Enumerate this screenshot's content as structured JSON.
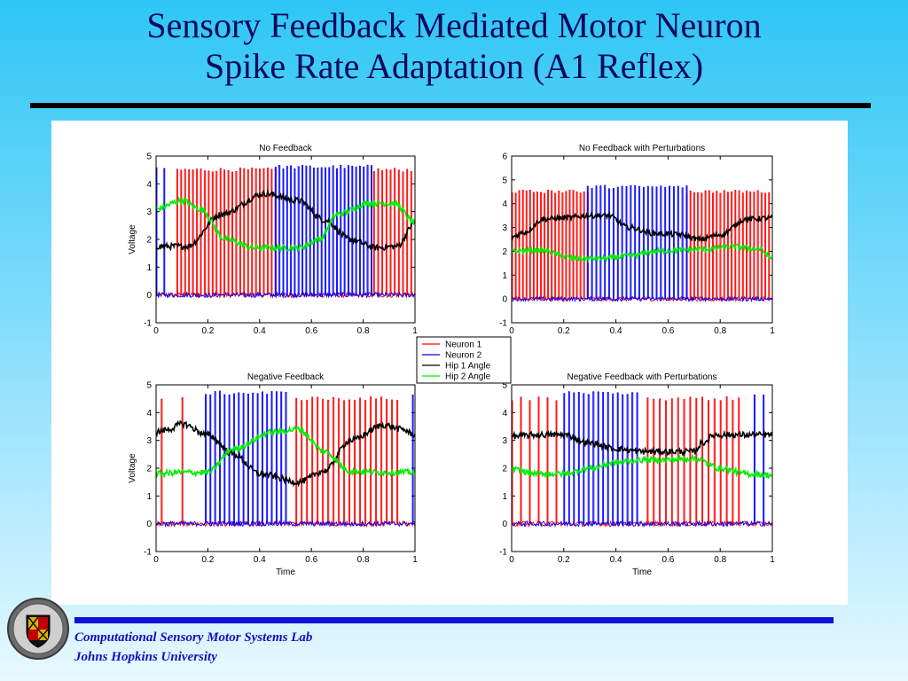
{
  "slide": {
    "title_line1": "Sensory Feedback Mediated Motor Neuron",
    "title_line2": "Spike Rate Adaptation (A1 Reflex)"
  },
  "footer": {
    "line1": "Computational Sensory Motor Systems Lab",
    "line2": "Johns Hopkins University"
  },
  "legend": {
    "entries": [
      "Neuron 1",
      "Neuron 2",
      "Hip 1 Angle",
      "Hip 2 Angle"
    ],
    "colors": [
      "#ff0000",
      "#0000ff",
      "#000000",
      "#00ee00"
    ]
  },
  "chart_data": [
    {
      "type": "line",
      "title": "No Feedback",
      "xlabel": "",
      "ylabel": "Voltage",
      "xlim": [
        0,
        1
      ],
      "ylim": [
        -1,
        5
      ],
      "xticks": [
        "0",
        "0.2",
        "0.4",
        "0.6",
        "0.8",
        "1"
      ],
      "yticks": [
        "-1",
        "0",
        "1",
        "2",
        "3",
        "4",
        "5"
      ],
      "series": [
        {
          "name": "Neuron 1",
          "spike_height": 4.5,
          "baseline": 0,
          "bursts": [
            [
              0.08,
              0.46
            ],
            [
              0.84,
              1.0
            ]
          ],
          "spikes_per_burst": [
            26,
            11
          ]
        },
        {
          "name": "Neuron 2",
          "spike_height": 4.6,
          "baseline": 0,
          "bursts": [
            [
              0.0,
              0.03
            ],
            [
              0.46,
              0.83
            ]
          ],
          "spikes_per_burst": [
            2,
            26
          ]
        },
        {
          "name": "Hip 1 Angle",
          "x": [
            0,
            0.12,
            0.25,
            0.42,
            0.55,
            0.65,
            0.75,
            0.85,
            0.93,
            1.0
          ],
          "y": [
            1.75,
            1.75,
            2.9,
            3.65,
            3.4,
            2.7,
            2.0,
            1.7,
            1.75,
            2.6
          ]
        },
        {
          "name": "Hip 2 Angle",
          "x": [
            0,
            0.1,
            0.17,
            0.27,
            0.38,
            0.55,
            0.63,
            0.7,
            0.82,
            0.92,
            1.0
          ],
          "y": [
            3.1,
            3.4,
            3.1,
            2.0,
            1.7,
            1.7,
            2.0,
            2.9,
            3.3,
            3.3,
            2.6
          ]
        }
      ]
    },
    {
      "type": "line",
      "title": "No Feedback with Perturbations",
      "xlabel": "",
      "ylabel": "",
      "xlim": [
        0,
        1
      ],
      "ylim": [
        -1,
        6
      ],
      "xticks": [
        "0",
        "0.2",
        "0.4",
        "0.6",
        "0.8",
        "1"
      ],
      "yticks": [
        "-1",
        "0",
        "1",
        "2",
        "3",
        "4",
        "5",
        "6"
      ],
      "series": [
        {
          "name": "Neuron 1",
          "spike_height": 4.5,
          "baseline": 0,
          "bursts": [
            [
              0.0,
              0.29
            ],
            [
              0.67,
              1.0
            ]
          ],
          "spikes_per_burst": [
            22,
            24
          ]
        },
        {
          "name": "Neuron 2",
          "spike_height": 4.7,
          "baseline": 0,
          "bursts": [
            [
              0.29,
              0.67
            ]
          ],
          "spikes_per_burst": [
            24
          ]
        },
        {
          "name": "Hip 1 Angle",
          "x": [
            0,
            0.05,
            0.12,
            0.2,
            0.3,
            0.37,
            0.45,
            0.55,
            0.65,
            0.72,
            0.8,
            0.9,
            1.0
          ],
          "y": [
            2.6,
            2.8,
            3.35,
            3.4,
            3.5,
            3.5,
            3.0,
            2.75,
            2.7,
            2.5,
            2.7,
            3.35,
            3.4
          ]
        },
        {
          "name": "Hip 2 Angle",
          "x": [
            0,
            0.1,
            0.25,
            0.35,
            0.45,
            0.55,
            0.65,
            0.75,
            0.85,
            0.95,
            1.0
          ],
          "y": [
            2.0,
            2.05,
            1.7,
            1.7,
            1.8,
            2.0,
            2.05,
            2.1,
            2.2,
            2.1,
            1.7
          ]
        }
      ]
    },
    {
      "type": "line",
      "title": "Negative Feedback",
      "xlabel": "Time",
      "ylabel": "Voltage",
      "xlim": [
        0,
        1
      ],
      "ylim": [
        -1,
        5
      ],
      "xticks": [
        "0",
        "0.2",
        "0.4",
        "0.6",
        "0.8",
        "1"
      ],
      "yticks": [
        "-1",
        "0",
        "1",
        "2",
        "3",
        "4",
        "5"
      ],
      "series": [
        {
          "name": "Neuron 1",
          "spike_height": 4.5,
          "baseline": 0,
          "bursts": [
            [
              0.02,
              0.1
            ],
            [
              0.54,
              0.93
            ]
          ],
          "spikes_per_burst": [
            2,
            20
          ]
        },
        {
          "name": "Neuron 2",
          "spike_height": 4.7,
          "baseline": 0,
          "bursts": [
            [
              0.19,
              0.5
            ],
            [
              0.99,
              1.0
            ]
          ],
          "spikes_per_burst": [
            18,
            1
          ]
        },
        {
          "name": "Hip 1 Angle",
          "x": [
            0,
            0.05,
            0.1,
            0.2,
            0.3,
            0.4,
            0.55,
            0.65,
            0.75,
            0.88,
            0.95,
            1.0
          ],
          "y": [
            3.3,
            3.4,
            3.6,
            3.2,
            2.5,
            1.8,
            1.5,
            1.9,
            3.0,
            3.55,
            3.4,
            3.2
          ]
        },
        {
          "name": "Hip 2 Angle",
          "x": [
            0,
            0.1,
            0.2,
            0.3,
            0.45,
            0.55,
            0.65,
            0.75,
            0.85,
            1.0
          ],
          "y": [
            1.8,
            1.85,
            1.85,
            2.7,
            3.3,
            3.4,
            2.6,
            1.9,
            1.85,
            1.85
          ]
        }
      ]
    },
    {
      "type": "line",
      "title": "Negative Feedback with Perturbations",
      "xlabel": "Time",
      "ylabel": "",
      "xlim": [
        0,
        1
      ],
      "ylim": [
        -1,
        5
      ],
      "xticks": [
        "0",
        "0.2",
        "0.4",
        "0.6",
        "0.8",
        "1"
      ],
      "yticks": [
        "-1",
        "0",
        "1",
        "2",
        "3",
        "4",
        "5"
      ],
      "series": [
        {
          "name": "Neuron 1",
          "spike_height": 4.5,
          "baseline": 0,
          "bursts": [
            [
              0.0,
              0.17
            ],
            [
              0.52,
              0.87
            ]
          ],
          "spikes_per_burst": [
            6,
            16
          ]
        },
        {
          "name": "Neuron 2",
          "spike_height": 4.7,
          "baseline": 0,
          "bursts": [
            [
              0.2,
              0.48
            ],
            [
              0.93,
              1.0
            ]
          ],
          "spikes_per_burst": [
            16,
            3
          ]
        },
        {
          "name": "Hip 1 Angle",
          "x": [
            0,
            0.1,
            0.2,
            0.3,
            0.4,
            0.5,
            0.6,
            0.7,
            0.73,
            0.78,
            0.9,
            1.0
          ],
          "y": [
            3.15,
            3.2,
            3.2,
            2.9,
            2.7,
            2.6,
            2.6,
            2.6,
            2.9,
            3.2,
            3.2,
            3.2
          ]
        },
        {
          "name": "Hip 2 Angle",
          "x": [
            0,
            0.1,
            0.2,
            0.3,
            0.4,
            0.5,
            0.6,
            0.7,
            0.8,
            0.9,
            1.0
          ],
          "y": [
            1.95,
            1.8,
            1.8,
            2.0,
            2.2,
            2.3,
            2.3,
            2.35,
            2.0,
            1.8,
            1.75
          ]
        }
      ]
    }
  ]
}
